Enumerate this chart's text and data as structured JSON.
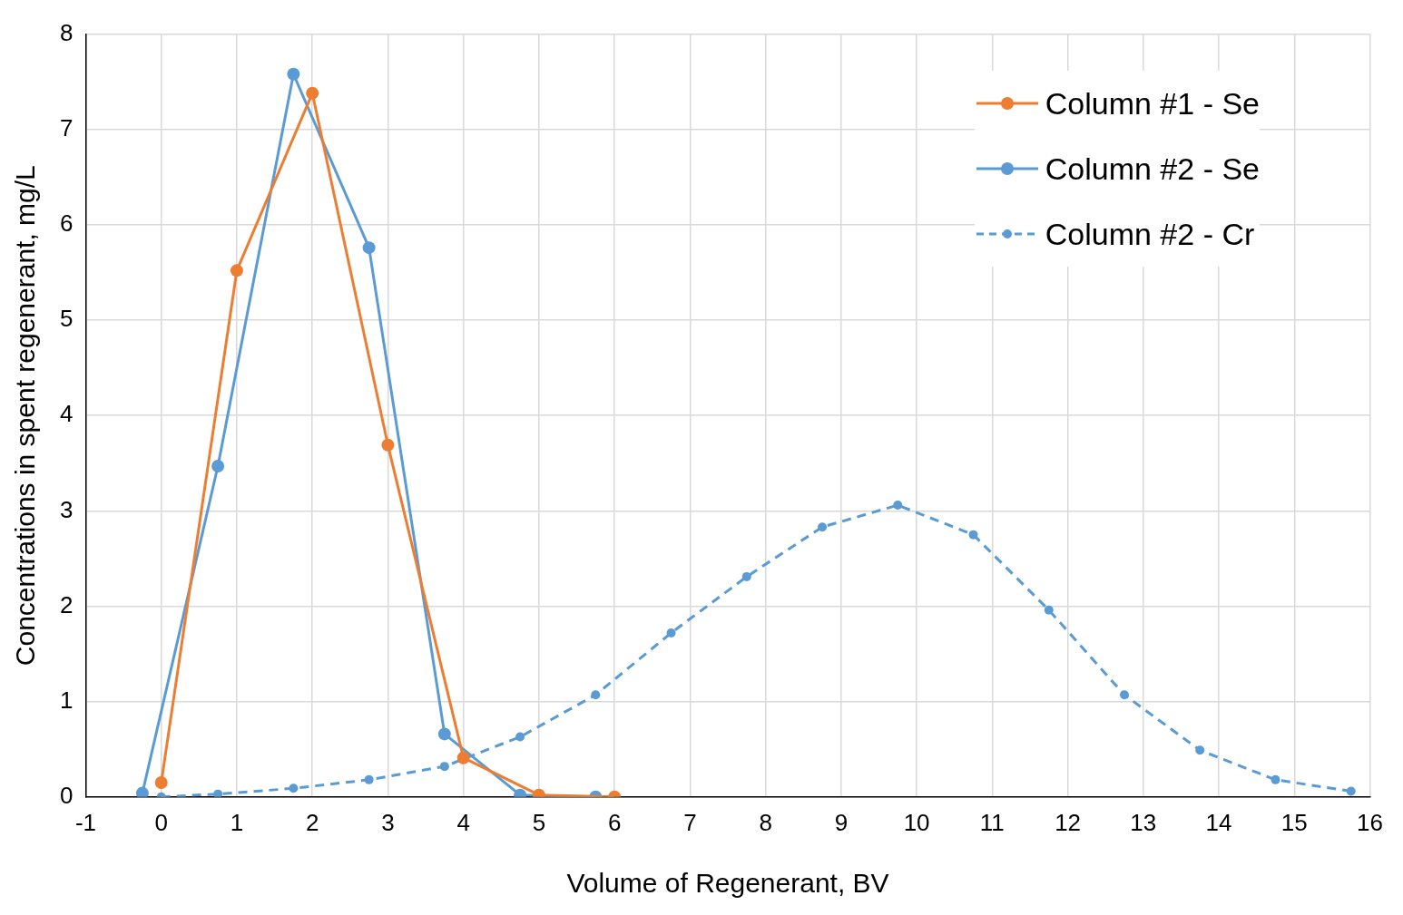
{
  "chart_data": {
    "type": "line",
    "xlabel": "Volume of Regenerant, BV",
    "ylabel": "Concentrations in spent regenerant, mg/L",
    "xlim": [
      -1,
      16
    ],
    "xticks": [
      -1,
      0,
      1,
      2,
      3,
      4,
      5,
      6,
      7,
      8,
      9,
      10,
      11,
      12,
      13,
      14,
      15,
      16
    ],
    "ylim": [
      0,
      8
    ],
    "yticks": [
      0,
      1,
      2,
      3,
      4,
      5,
      6,
      7,
      8
    ],
    "grid": true,
    "legend": "top right",
    "marker": "circle",
    "series": [
      {
        "name": "Column #1 - Se",
        "color": "#ed7d31",
        "x": [
          0,
          1,
          2,
          3,
          4,
          5,
          6
        ],
        "values": [
          0.15,
          5.52,
          7.38,
          3.69,
          0.41,
          0.02,
          0.0
        ]
      },
      {
        "name": "Column #2 - Se",
        "color": "#5b9bd5",
        "x": [
          -0.25,
          0.75,
          1.75,
          2.75,
          3.75,
          4.75,
          5.75
        ],
        "values": [
          0.04,
          3.47,
          7.58,
          5.76,
          0.66,
          0.02,
          0.0
        ]
      },
      {
        "name": "Column #2 - Cr",
        "color": "#5b9bd5",
        "line_style": "dashed",
        "x": [
          0,
          0.75,
          1.75,
          2.75,
          3.75,
          4.75,
          5.75,
          6.75,
          7.75,
          8.75,
          9.75,
          10.75,
          11.75,
          12.75,
          13.75,
          14.75,
          15.75
        ],
        "values": [
          0,
          0.03,
          0.09,
          0.18,
          0.32,
          0.63,
          1.07,
          1.72,
          2.31,
          2.83,
          3.06,
          2.75,
          1.96,
          1.07,
          0.49,
          0.18,
          0.06
        ]
      }
    ]
  }
}
